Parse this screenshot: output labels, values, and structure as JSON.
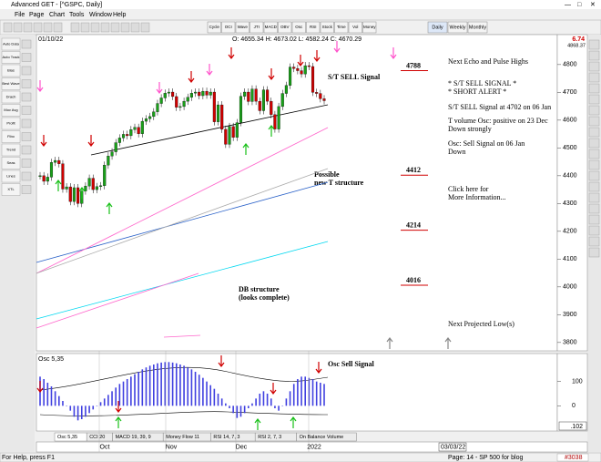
{
  "window": {
    "title": "Advanced GET - [^GSPC, Daily]"
  },
  "menu": [
    "File",
    "Page",
    "Chart",
    "Tools",
    "Window",
    "Help"
  ],
  "toolbar": [
    "Cycle",
    "OCI",
    "Wave",
    "JTI",
    "MACD",
    "OBV",
    "Osc",
    "RSI",
    "Stock",
    "Time",
    "Vol",
    "Money"
  ],
  "periods": [
    "Daily",
    "Weekly",
    "Monthly"
  ],
  "left_tools": [
    "Auto Data",
    "Auto Track",
    "Bias",
    "Best Wave",
    "Drach",
    "Mov Avg",
    "Profit",
    "Fibo",
    "Trend",
    "Seas",
    "Lines",
    "XTL"
  ],
  "chart": {
    "date": "01/10/22",
    "ohlc": "O: 4655.34  H: 4673.02  L: 4582.24  C: 4670.29",
    "change": "6.74",
    "top_price": "4868.37",
    "ylim": [
      3770,
      4868.37
    ],
    "yticks": [
      3800,
      3900,
      4000,
      4100,
      4200,
      4300,
      4400,
      4500,
      4600,
      4700,
      4800
    ],
    "closes": [
      4400,
      4380,
      4395,
      4448,
      4455,
      4443,
      4352,
      4360,
      4307,
      4357,
      4300,
      4345,
      4363,
      4391,
      4350,
      4361,
      4364,
      4438,
      4471,
      4486,
      4519,
      4536,
      4549,
      4544,
      4566,
      4574,
      4551,
      4596,
      4605,
      4613,
      4630,
      4660,
      4680,
      4697,
      4701,
      4685,
      4646,
      4649,
      4668,
      4682,
      4697,
      4701,
      4688,
      4704,
      4690,
      4701,
      4594,
      4655,
      4567,
      4513,
      4577,
      4538,
      4591,
      4686,
      4701,
      4667,
      4712,
      4668,
      4634,
      4709,
      4668,
      4620,
      4568,
      4649,
      4696,
      4725,
      4791,
      4786,
      4778,
      4766,
      4796,
      4793,
      4700,
      4696,
      4677,
      4670
    ],
    "months": [
      "Oct",
      "Nov",
      "Dec",
      "2022"
    ],
    "cursor_date": "03/03/22",
    "projections": [
      4788,
      4412,
      4214,
      4016
    ],
    "signal_label": "S/T SELL Signal",
    "structure_label": [
      "Possible",
      "new T structure"
    ],
    "db_label": [
      "DB structure",
      "(looks complete)"
    ],
    "notes": [
      "Next Echo and Pulse Highs",
      "* S/T SELL SIGNAL *",
      "* SHORT ALERT *",
      "S/T SELL Signal at 4702 on 06 Jan",
      "T volume Osc: positive on 23 Dec",
      "Down strongly",
      "Osc: Sell Signal on 06 Jan",
      "Down",
      "Click here for",
      "More Information...",
      "Next Projected Low(s)"
    ]
  },
  "oscillator": {
    "label": "Osc 5,35",
    "values": [
      120,
      110,
      95,
      80,
      60,
      40,
      20,
      0,
      -20,
      -45,
      -60,
      -55,
      -45,
      -30,
      -15,
      0,
      15,
      30,
      45,
      60,
      75,
      90,
      100,
      110,
      120,
      130,
      140,
      150,
      158,
      165,
      170,
      175,
      178,
      180,
      180,
      178,
      175,
      170,
      165,
      158,
      150,
      140,
      128,
      115,
      100,
      85,
      70,
      50,
      30,
      10,
      -10,
      -30,
      -50,
      -45,
      -30,
      -10,
      10,
      30,
      50,
      60,
      50,
      30,
      -10,
      -20,
      0,
      30,
      60,
      90,
      110,
      120,
      120,
      115,
      110,
      100,
      95,
      90
    ],
    "ylim": [
      -100,
      200
    ],
    "yticks": [
      0,
      100
    ],
    "readout": ".102",
    "annotation": "Osc Sell Signal"
  },
  "tabs": [
    "Osc 5,35",
    "CCI 20",
    "MACD 19, 39, 9",
    "Money Flow 11",
    "RSI 14, 7, 3",
    "RSI 2, 7, 3",
    "On Balance Volume"
  ],
  "status": {
    "help": "For Help, press F1",
    "page": "Page: 14 - SP 500 for blog",
    "code": "#3038"
  }
}
